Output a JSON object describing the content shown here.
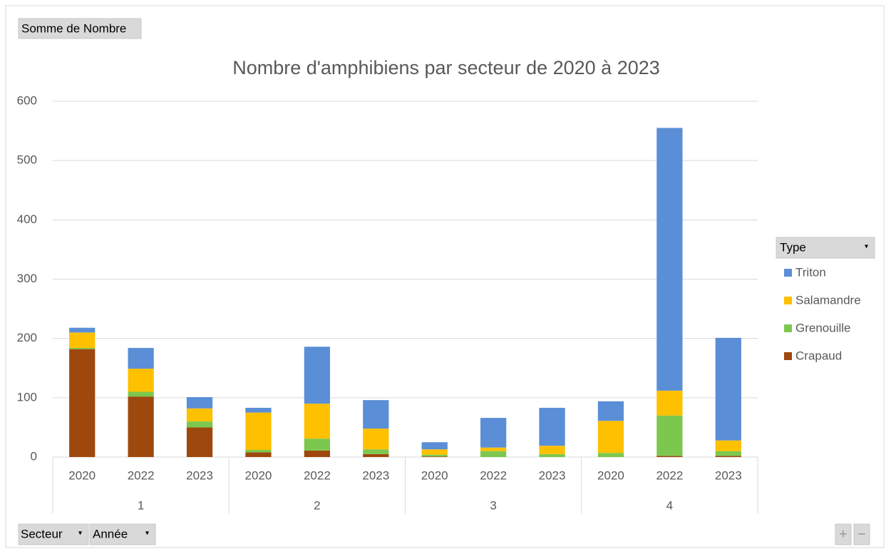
{
  "chart_data": {
    "type": "stacked_bar",
    "title": "Nombre d'amphibiens par secteur de 2020 à 2023",
    "categories": [
      "2020",
      "2022",
      "2023",
      "2020",
      "2022",
      "2023",
      "2020",
      "2022",
      "2023",
      "2020",
      "2022",
      "2023"
    ],
    "groups": [
      "1",
      "2",
      "3",
      "4"
    ],
    "series": [
      {
        "name": "Crapaud",
        "color": "#9e480e",
        "values": [
          182,
          102,
          50,
          8,
          11,
          5,
          1,
          0,
          0,
          0,
          2,
          2
        ]
      },
      {
        "name": "Grenouille",
        "color": "#7cc84e",
        "values": [
          2,
          8,
          10,
          4,
          20,
          8,
          3,
          10,
          5,
          7,
          68,
          8
        ]
      },
      {
        "name": "Salamandre",
        "color": "#ffc000",
        "values": [
          26,
          39,
          22,
          63,
          59,
          35,
          9,
          6,
          14,
          54,
          42,
          18
        ]
      },
      {
        "name": "Triton",
        "color": "#5a8ed6",
        "values": [
          8,
          35,
          19,
          8,
          96,
          48,
          12,
          50,
          64,
          33,
          443,
          173
        ]
      }
    ],
    "ylim": [
      0,
      600
    ],
    "yticks": [
      0,
      100,
      200,
      300,
      400,
      500,
      600
    ],
    "grid": true,
    "legend": "right",
    "legend_title": "Type"
  },
  "ui": {
    "value_field": "Somme de Nombre",
    "axis_fields": [
      "Secteur",
      "Année"
    ],
    "zoom": [
      "+",
      "−"
    ]
  }
}
